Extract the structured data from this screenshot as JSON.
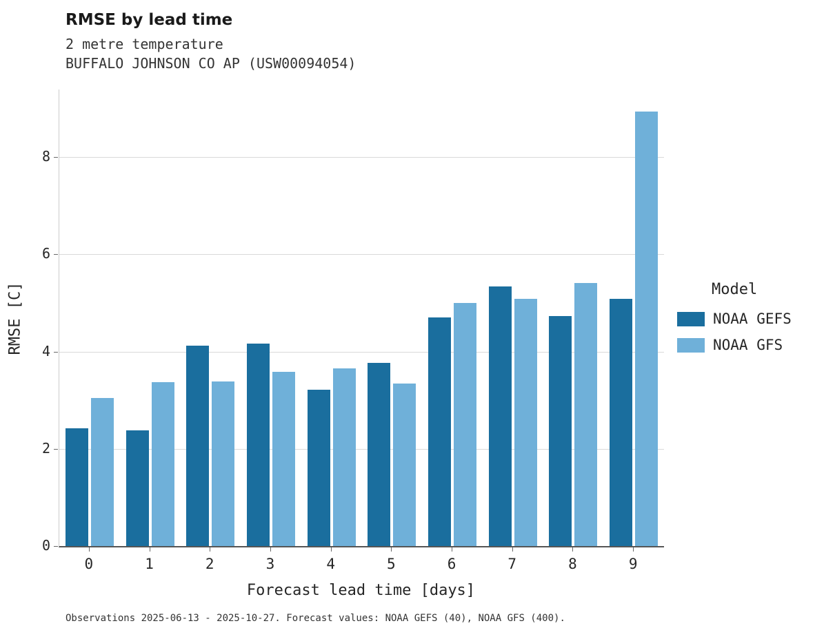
{
  "header": {
    "title": "RMSE by lead time",
    "subtitle1": "2 metre temperature",
    "subtitle2": "BUFFALO JOHNSON CO AP (USW00094054)"
  },
  "legend": {
    "title": "Model",
    "entries": [
      {
        "label": "NOAA GEFS",
        "color": "#1a6e9e"
      },
      {
        "label": "NOAA GFS",
        "color": "#6fb0d9"
      }
    ]
  },
  "caption": "Observations 2025-06-13 - 2025-10-27. Forecast values: NOAA GEFS (40), NOAA GFS (400).",
  "chart_data": {
    "type": "bar",
    "title": "RMSE by lead time",
    "subtitle": "2 metre temperature — BUFFALO JOHNSON CO AP (USW00094054)",
    "categories": [
      "0",
      "1",
      "2",
      "3",
      "4",
      "5",
      "6",
      "7",
      "8",
      "9"
    ],
    "series": [
      {
        "name": "NOAA GEFS",
        "color": "#1a6e9e",
        "values": [
          2.42,
          2.38,
          4.12,
          4.16,
          3.22,
          3.77,
          4.7,
          5.34,
          4.73,
          5.08
        ]
      },
      {
        "name": "NOAA GFS",
        "color": "#6fb0d9",
        "values": [
          3.05,
          3.37,
          3.38,
          3.58,
          3.66,
          3.34,
          5.0,
          5.09,
          5.41,
          8.93
        ]
      }
    ],
    "xlabel": "Forecast lead time [days]",
    "ylabel": "RMSE [C]",
    "ylim": [
      0,
      9.39
    ],
    "yticks": [
      0,
      2,
      4,
      6,
      8
    ],
    "grid": true,
    "legend_position": "right"
  }
}
